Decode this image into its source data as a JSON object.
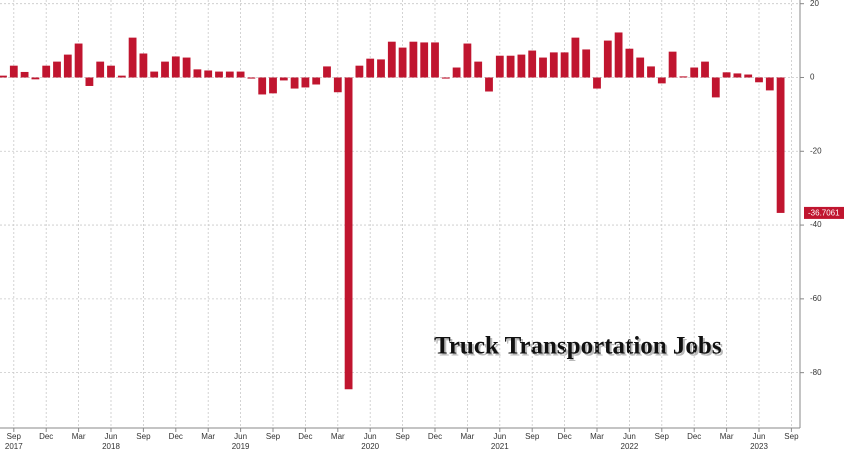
{
  "chart_data": {
    "type": "bar",
    "title": "Truck Transportation Jobs",
    "categories": [
      null,
      "Sep",
      null,
      null,
      "Dec",
      null,
      null,
      "Mar",
      null,
      null,
      "Jun",
      null,
      null,
      "Sep",
      null,
      null,
      "Dec",
      null,
      null,
      "Mar",
      null,
      null,
      "Jun",
      null,
      null,
      "Sep",
      null,
      null,
      "Dec",
      null,
      null,
      "Mar",
      null,
      null,
      "Jun",
      null,
      null,
      "Sep",
      null,
      null,
      "Dec",
      null,
      null,
      "Mar",
      null,
      null,
      "Jun",
      null,
      null,
      "Sep",
      null,
      null,
      "Dec",
      null,
      null,
      "Mar",
      null,
      null,
      "Jun",
      null,
      null,
      "Sep",
      null,
      null,
      "Dec",
      null,
      null,
      "Mar",
      null,
      null,
      "Jun",
      null,
      null,
      "Sep"
    ],
    "years": [
      null,
      "2017",
      null,
      null,
      null,
      null,
      null,
      null,
      null,
      null,
      "2018",
      null,
      null,
      null,
      null,
      null,
      null,
      null,
      null,
      null,
      null,
      null,
      "2019",
      null,
      null,
      null,
      null,
      null,
      null,
      null,
      null,
      null,
      null,
      null,
      "2020",
      null,
      null,
      null,
      null,
      null,
      null,
      null,
      null,
      null,
      null,
      null,
      "2021",
      null,
      null,
      null,
      null,
      null,
      null,
      null,
      null,
      null,
      null,
      null,
      "2022",
      null,
      null,
      null,
      null,
      null,
      null,
      null,
      null,
      null,
      null,
      null,
      "2023",
      null,
      null,
      null
    ],
    "values": [
      0.5,
      3.2,
      1.5,
      -0.5,
      3.2,
      4.3,
      6.2,
      9.2,
      -2.3,
      4.3,
      3.2,
      0.5,
      10.8,
      6.5,
      1.6,
      4.3,
      5.7,
      5.4,
      2.2,
      1.9,
      1.6,
      1.6,
      1.6,
      -0.3,
      -4.6,
      -4.3,
      -0.8,
      -3,
      -2.7,
      -1.9,
      3,
      -4,
      -84.5,
      3.2,
      5.1,
      4.9,
      9.7,
      8.1,
      9.7,
      9.5,
      9.5,
      -0.3,
      2.7,
      9.2,
      4.3,
      -3.8,
      5.9,
      5.9,
      6.2,
      7.3,
      5.4,
      6.8,
      6.8,
      10.8,
      7.6,
      -3,
      10,
      12.2,
      7.8,
      5.4,
      3,
      -1.6,
      7,
      0.3,
      2.7,
      4.3,
      -5.4,
      1.4,
      1.1,
      0.8,
      -1.3,
      -3.5,
      -36.7061,
      null
    ],
    "last_value_label": "-36.7061",
    "color": "#c0152f",
    "ylim": [
      -95,
      21
    ],
    "yticks": [
      -80,
      -60,
      -40,
      -20,
      0,
      20
    ],
    "grid": true
  }
}
